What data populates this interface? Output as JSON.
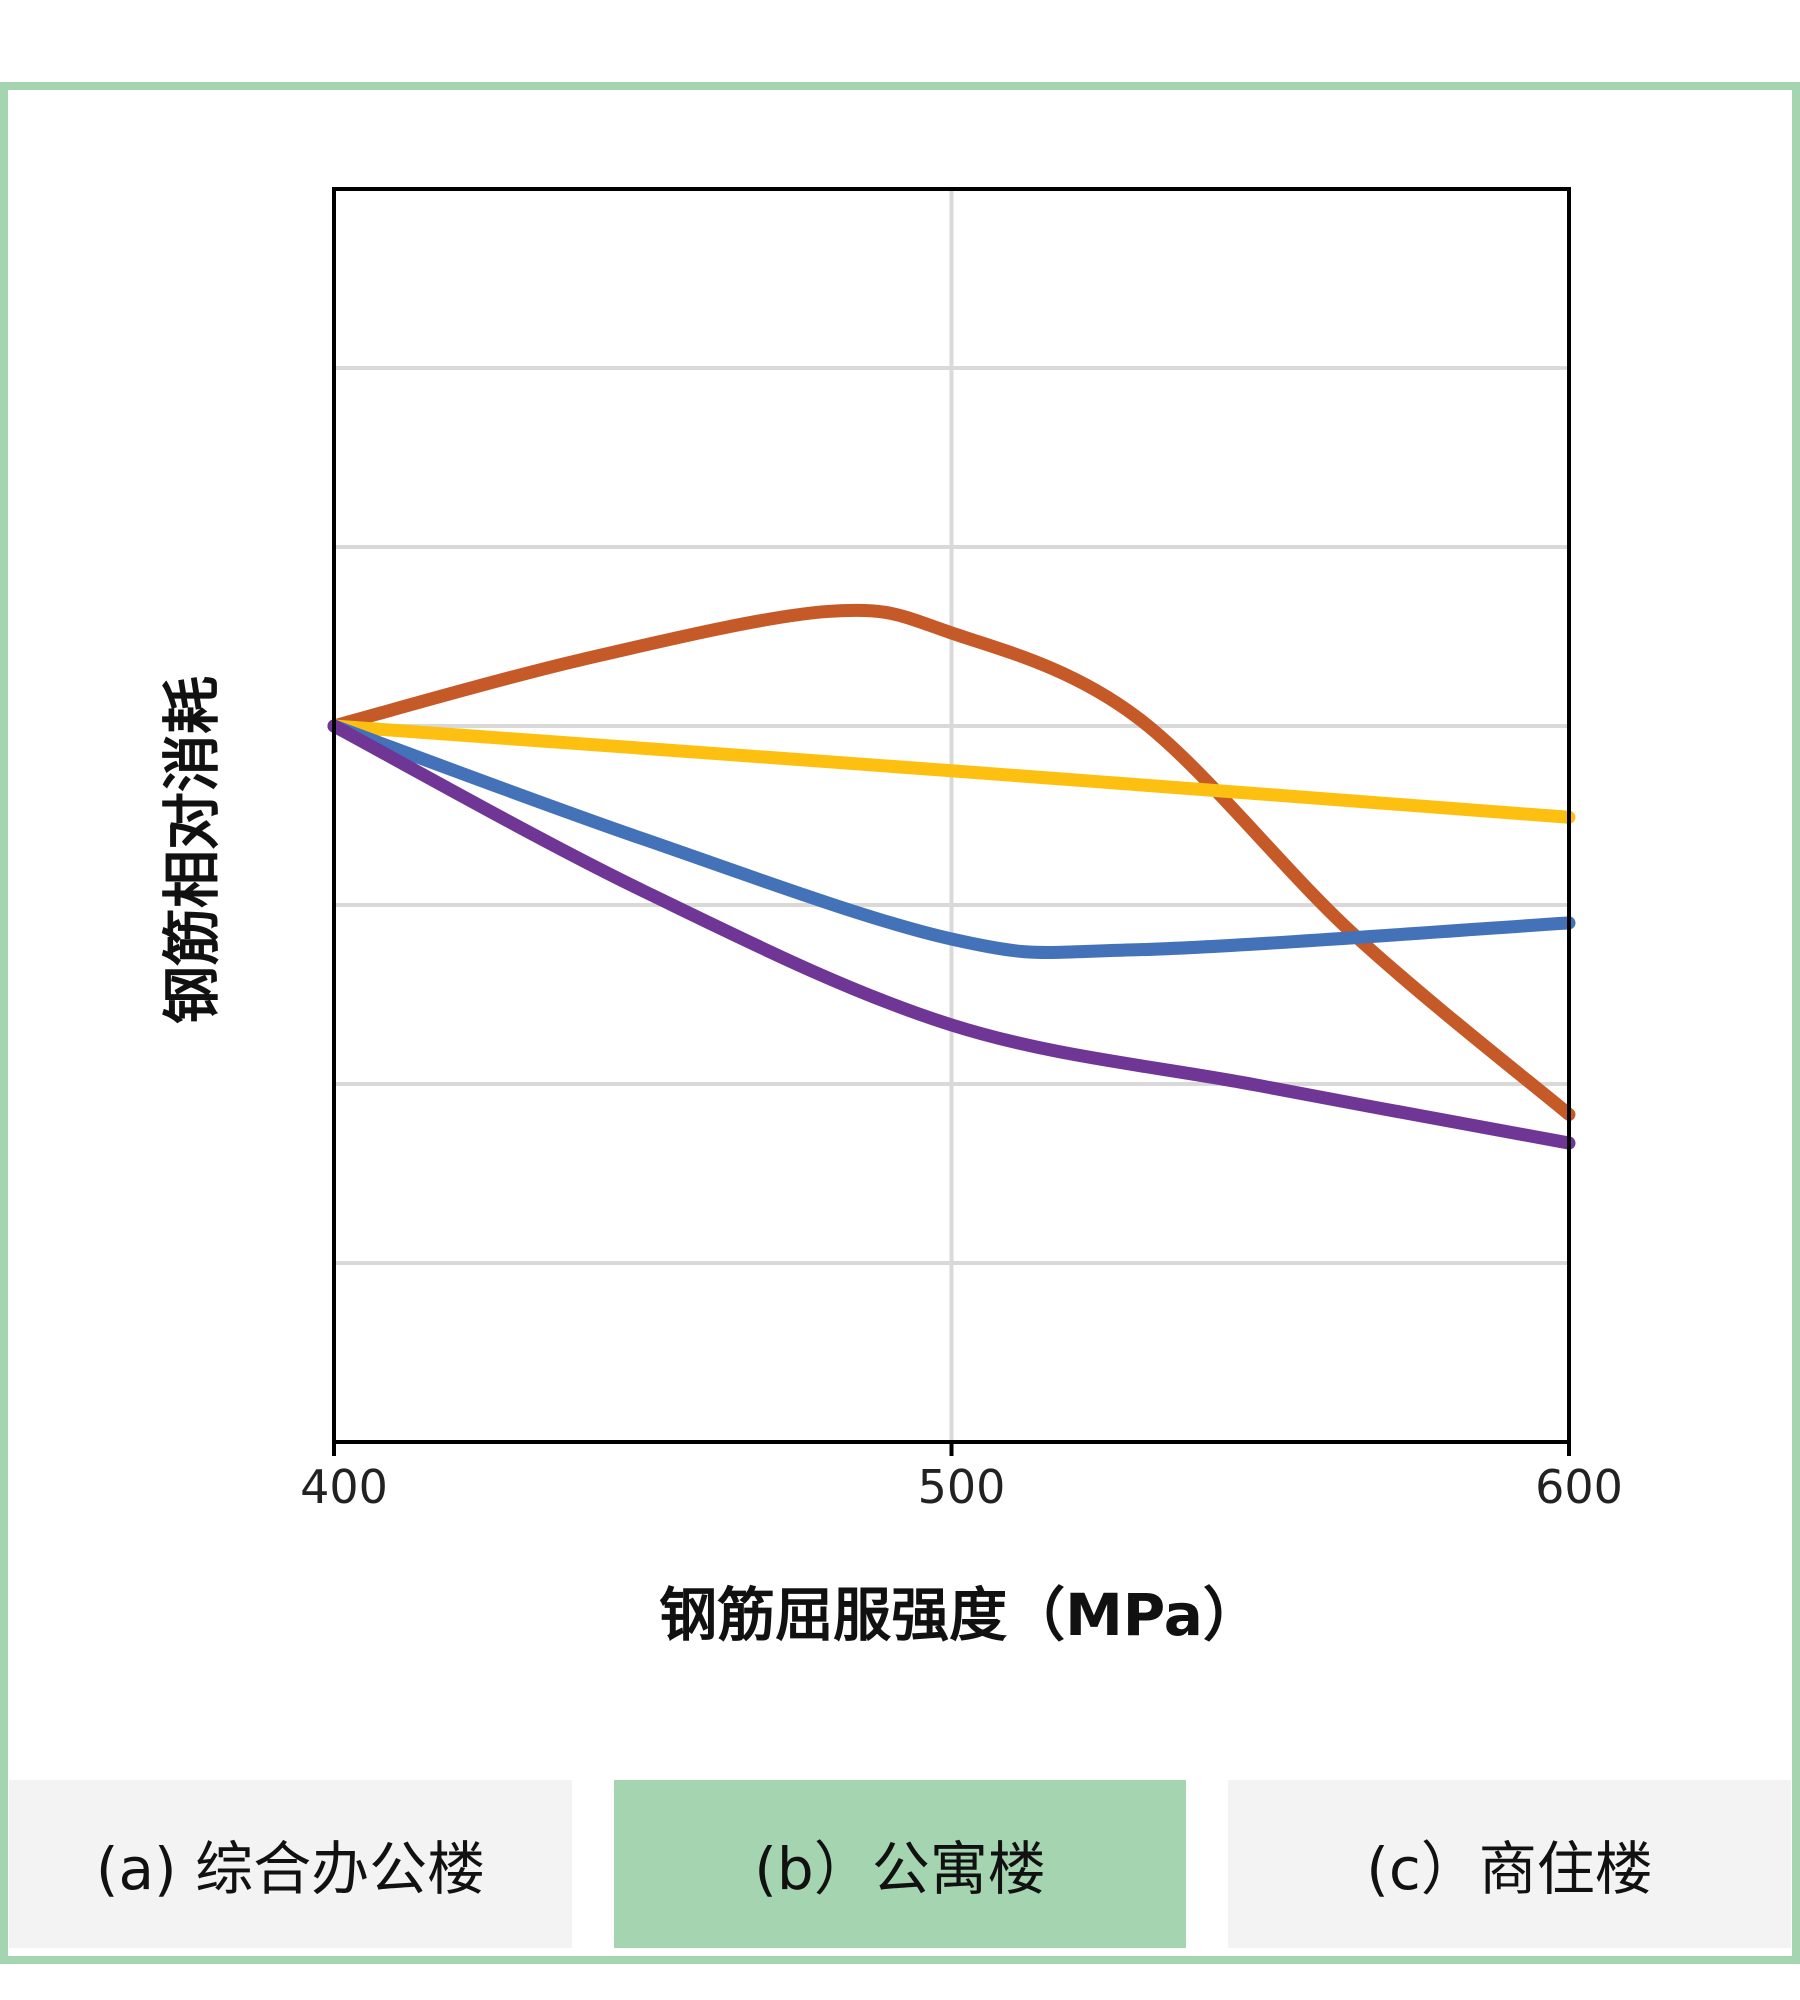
{
  "chart_data": {
    "type": "line",
    "xlabel": "钢筋屈服强度（MPa）",
    "ylabel": "钢筋相对消耗",
    "xlim": [
      400,
      600
    ],
    "ylim": [
      0,
      7
    ],
    "xticks": [
      "400",
      "500",
      "600"
    ],
    "grid": true,
    "series": [
      {
        "name": "orange",
        "color": "#c55a28",
        "x": [
          400,
          440,
          480,
          500,
          530,
          565,
          600
        ],
        "y": [
          4.0,
          4.37,
          4.64,
          4.52,
          4.05,
          2.84,
          1.83
        ]
      },
      {
        "name": "yellow",
        "color": "#fdc010",
        "x": [
          400,
          500,
          600
        ],
        "y": [
          4.0,
          3.75,
          3.49
        ]
      },
      {
        "name": "blue",
        "color": "#4472b8",
        "x": [
          400,
          450,
          500,
          530,
          600
        ],
        "y": [
          4.0,
          3.37,
          2.81,
          2.75,
          2.9
        ]
      },
      {
        "name": "purple",
        "color": "#703696",
        "x": [
          400,
          450,
          500,
          550,
          600
        ],
        "y": [
          4.0,
          3.08,
          2.33,
          1.99,
          1.67
        ]
      }
    ]
  },
  "tabs": [
    {
      "label": "(a) 综合办公楼",
      "active": false
    },
    {
      "label": "(b）公寓楼",
      "active": true
    },
    {
      "label": "(c）商住楼",
      "active": false
    }
  ]
}
